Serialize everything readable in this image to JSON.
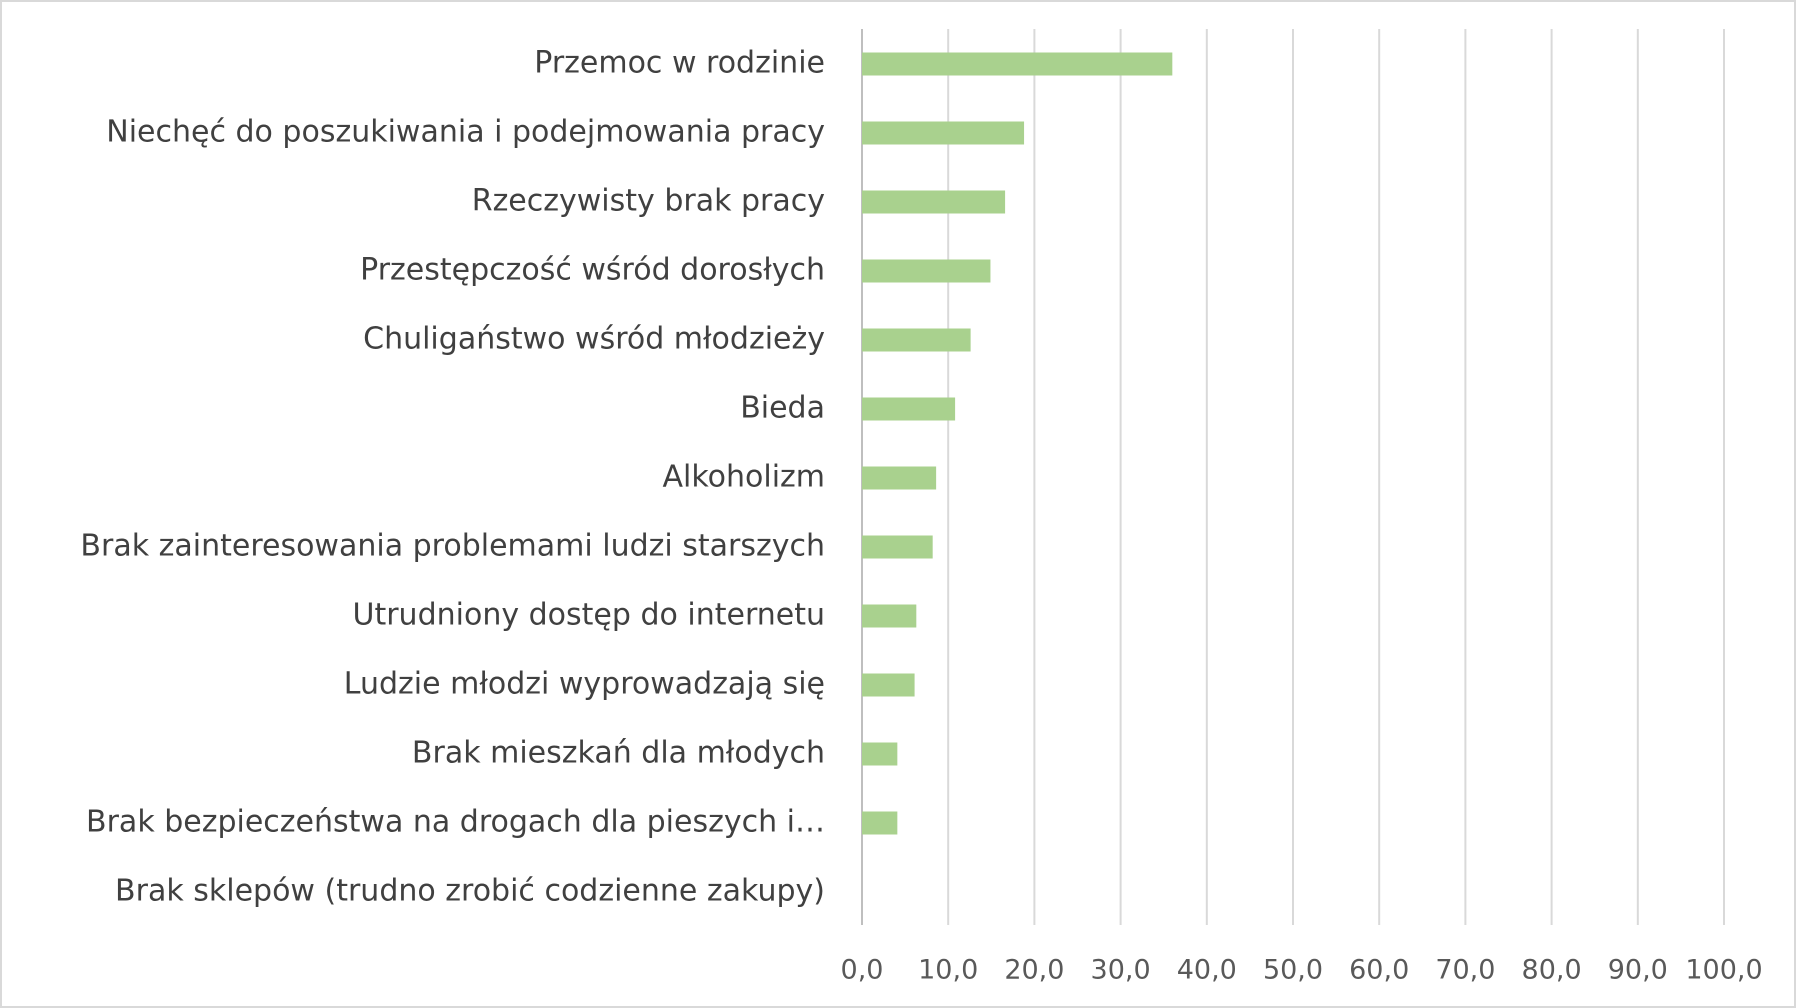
{
  "chart_data": {
    "type": "barh",
    "categories": [
      "Przemoc w rodzinie",
      "Niechęć do poszukiwania i podejmowania pracy",
      "Rzeczywisty brak pracy",
      "Przestępczość wśród dorosłych",
      "Chuligaństwo wśród młodzieży",
      "Bieda",
      "Alkoholizm",
      "Brak zainteresowania problemami ludzi starszych",
      "Utrudniony dostęp do internetu",
      "Ludzie młodzi wyprowadzają się",
      "Brak mieszkań dla młodych",
      "Brak bezpieczeństwa na drogach dla pieszych i…",
      "Brak sklepów (trudno zrobić codzienne zakupy)"
    ],
    "values": [
      36.0,
      18.8,
      16.6,
      14.9,
      12.6,
      10.8,
      8.6,
      8.2,
      6.3,
      6.1,
      4.1,
      4.1,
      0
    ],
    "color": "#a9d18e",
    "xlim": [
      0,
      100
    ],
    "xticks": [
      {
        "value": 0,
        "label": "0,0"
      },
      {
        "value": 10,
        "label": "10,0"
      },
      {
        "value": 20,
        "label": "20,0"
      },
      {
        "value": 30,
        "label": "30,0"
      },
      {
        "value": 40,
        "label": "40,0"
      },
      {
        "value": 50,
        "label": "50,0"
      },
      {
        "value": 60,
        "label": "60,0"
      },
      {
        "value": 70,
        "label": "70,0"
      },
      {
        "value": 80,
        "label": "80,0"
      },
      {
        "value": 90,
        "label": "90,0"
      },
      {
        "value": 100,
        "label": "100,0"
      }
    ],
    "grid": true
  }
}
